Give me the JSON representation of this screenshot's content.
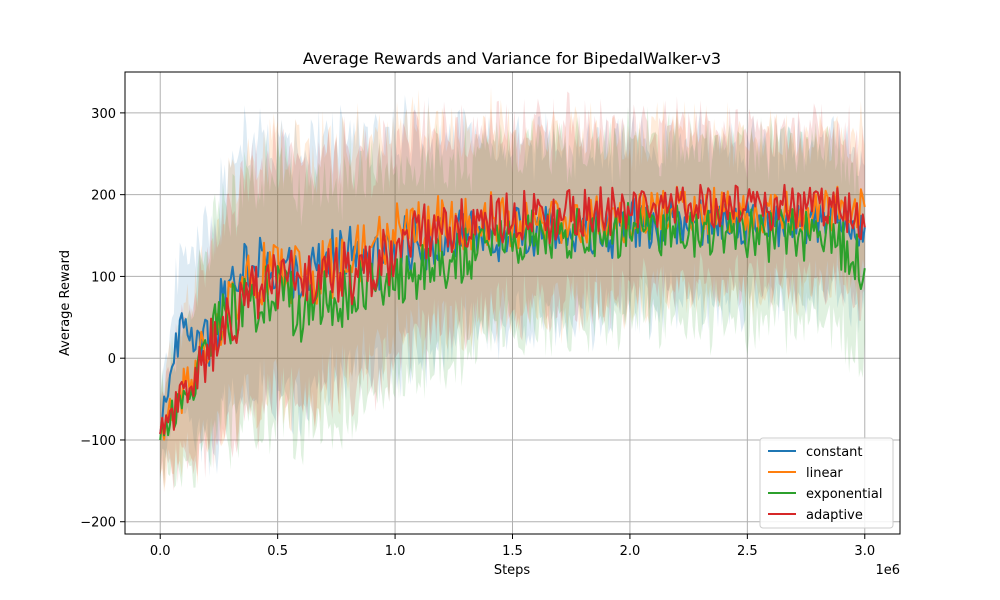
{
  "chart_data": {
    "type": "line",
    "title": "Average Rewards and Variance for BipedalWalker-v3",
    "xlabel": "Steps",
    "ylabel": "Average Reward",
    "x_offset_text": "1e6",
    "xlim": [
      -0.15,
      3.15
    ],
    "ylim": [
      -215,
      350
    ],
    "x_ticks": [
      0,
      0.5,
      1.0,
      1.5,
      2.0,
      2.5,
      3.0
    ],
    "x_tick_labels": [
      "0.0",
      "0.5",
      "1.0",
      "1.5",
      "2.0",
      "2.5",
      "3.0"
    ],
    "y_ticks": [
      -200,
      -100,
      0,
      100,
      200,
      300
    ],
    "y_tick_labels": [
      "−200",
      "−100",
      "0",
      "100",
      "200",
      "300"
    ],
    "grid": true,
    "legend_position": "lower-right",
    "x": [
      0,
      0.1,
      0.2,
      0.3,
      0.4,
      0.5,
      0.6,
      0.7,
      0.8,
      0.9,
      1.0,
      1.1,
      1.2,
      1.3,
      1.4,
      1.5,
      1.6,
      1.7,
      1.8,
      1.9,
      2.0,
      2.1,
      2.2,
      2.3,
      2.4,
      2.5,
      2.6,
      2.7,
      2.8,
      2.9,
      3.0
    ],
    "series": [
      {
        "name": "constant",
        "color": "#1f77b4",
        "values": [
          -85,
          60,
          15,
          90,
          120,
          90,
          110,
          120,
          130,
          110,
          140,
          140,
          150,
          145,
          150,
          150,
          155,
          150,
          160,
          150,
          165,
          160,
          170,
          165,
          165,
          165,
          165,
          165,
          170,
          170,
          160
        ],
        "spread": [
          25,
          80,
          110,
          130,
          140,
          140,
          140,
          135,
          130,
          125,
          120,
          115,
          110,
          105,
          100,
          95,
          90,
          90,
          85,
          85,
          85,
          80,
          80,
          80,
          80,
          75,
          75,
          75,
          75,
          75,
          75
        ]
      },
      {
        "name": "linear",
        "color": "#ff7f0e",
        "values": [
          -90,
          -40,
          20,
          60,
          100,
          110,
          100,
          110,
          120,
          130,
          160,
          160,
          165,
          165,
          170,
          165,
          165,
          170,
          170,
          175,
          170,
          175,
          180,
          180,
          180,
          175,
          180,
          180,
          180,
          185,
          185
        ],
        "spread": [
          25,
          70,
          100,
          120,
          130,
          130,
          130,
          125,
          120,
          115,
          110,
          105,
          100,
          100,
          95,
          95,
          90,
          90,
          85,
          85,
          80,
          80,
          80,
          80,
          75,
          75,
          75,
          75,
          75,
          75,
          75
        ]
      },
      {
        "name": "exponential",
        "color": "#2ca02c",
        "values": [
          -85,
          -60,
          20,
          50,
          70,
          80,
          60,
          70,
          80,
          90,
          100,
          110,
          120,
          125,
          130,
          140,
          150,
          150,
          155,
          150,
          160,
          160,
          155,
          150,
          155,
          150,
          150,
          150,
          145,
          140,
          110
        ],
        "spread": [
          25,
          70,
          100,
          120,
          130,
          135,
          135,
          130,
          125,
          120,
          115,
          110,
          105,
          100,
          95,
          95,
          95,
          90,
          90,
          90,
          90,
          90,
          90,
          90,
          90,
          90,
          90,
          90,
          90,
          90,
          90
        ]
      },
      {
        "name": "adaptive",
        "color": "#d62728",
        "values": [
          -90,
          -50,
          10,
          50,
          80,
          100,
          100,
          110,
          100,
          110,
          130,
          150,
          160,
          170,
          175,
          175,
          170,
          175,
          175,
          180,
          180,
          180,
          180,
          185,
          190,
          185,
          185,
          185,
          185,
          180,
          160
        ],
        "spread": [
          25,
          70,
          100,
          120,
          130,
          130,
          130,
          125,
          120,
          115,
          110,
          105,
          100,
          100,
          95,
          95,
          90,
          90,
          85,
          85,
          80,
          80,
          80,
          80,
          75,
          75,
          75,
          75,
          75,
          75,
          75
        ]
      }
    ]
  }
}
